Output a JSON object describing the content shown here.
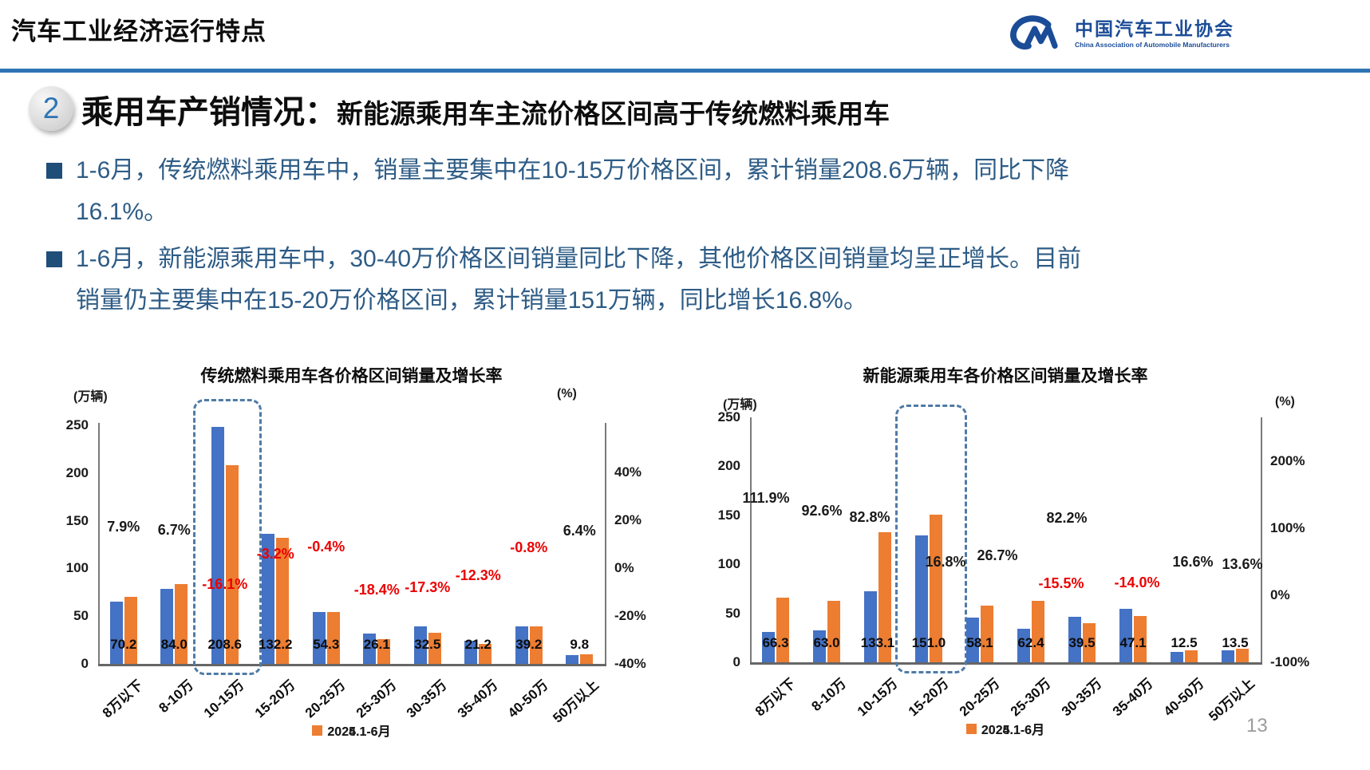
{
  "header": {
    "title": "汽车工业经济运行特点",
    "logo": {
      "name_cn": "中国汽车工业协会",
      "name_en": "China Association of Automobile Manufacturers"
    }
  },
  "section": {
    "number": "2",
    "title": "乘用车产销情况：",
    "subtitle": "新能源乘用车主流价格区间高于传统燃料乘用车"
  },
  "bullets": [
    {
      "line1": "1-6月，传统燃料乘用车中，销量主要集中在10-15万价格区间，累计销量208.6万辆，同比下降",
      "line2": "16.1%。"
    },
    {
      "line1": "1-6月，新能源乘用车中，30-40万价格区间销量同比下降，其他价格区间销量均呈正增长。目前",
      "line2": "销量仍主要集中在15-20万价格区间，累计销量151万辆，同比增长16.8%。"
    }
  ],
  "page_number": "13",
  "colors": {
    "accent_blue": "#2e74b5",
    "text_blue": "#2e5c86",
    "bar_2024": "#4472c4",
    "bar_2025": "#ed7d31",
    "growth_negative": "#eb0000",
    "growth_positive": "#1a1a1a",
    "highlight_dash": "#4f7ba6"
  },
  "chart_data": [
    {
      "type": "bar",
      "title": "传统燃料乘用车各价格区间销量及增长率",
      "left_axis_unit": "(万辆)",
      "right_axis_unit": "(%)",
      "categories": [
        "8万以下",
        "8-10万",
        "10-15万",
        "15-20万",
        "20-25万",
        "25-30万",
        "30-35万",
        "35-40万",
        "40-50万",
        "50万以上"
      ],
      "series": [
        {
          "name": "2024.1-6月",
          "color": "#4472c4",
          "estimated": true,
          "values": [
            65.1,
            78.7,
            248.6,
            136.6,
            54.5,
            32.0,
            39.3,
            24.2,
            39.5,
            9.2
          ]
        },
        {
          "name": "2025.1-6月",
          "color": "#ed7d31",
          "estimated": false,
          "values": [
            70.2,
            84.0,
            208.6,
            132.2,
            54.3,
            26.1,
            32.5,
            21.2,
            39.2,
            9.8
          ]
        }
      ],
      "value_labels": [
        "70.2",
        "84.0",
        "208.6",
        "132.2",
        "54.3",
        "26.1",
        "32.5",
        "21.2",
        "39.2",
        "9.8"
      ],
      "growth_rate_pct": [
        7.9,
        6.7,
        -16.1,
        -3.2,
        -0.4,
        -18.4,
        -17.3,
        -12.3,
        -0.8,
        6.4
      ],
      "growth_labels": [
        "7.9%",
        "6.7%",
        "-16.1%",
        "-3.2%",
        "-0.4%",
        "-18.4%",
        "-17.3%",
        "-12.3%",
        "-0.8%",
        "6.4%"
      ],
      "left_ticks": [
        0,
        50,
        100,
        150,
        200,
        250
      ],
      "left_axis_range": [
        0,
        270
      ],
      "right_ticks_pct": [
        40,
        20,
        0,
        -20,
        -40
      ],
      "right_tick_labels": [
        "40%",
        "20%",
        "0%",
        "-20%",
        "-40%"
      ],
      "right_axis_range_pct": [
        -40,
        40
      ],
      "highlighted_category": "10-15万",
      "legend": [
        "2024.1-6月",
        "2025.1-6月"
      ],
      "legend_position": "bottom",
      "grid": false
    },
    {
      "type": "bar",
      "title": "新能源乘用车各价格区间销量及增长率",
      "left_axis_unit": "(万辆)",
      "right_axis_unit": "(%)",
      "categories": [
        "8万以下",
        "8-10万",
        "10-15万",
        "15-20万",
        "20-25万",
        "25-30万",
        "30-35万",
        "35-40万",
        "40-50万",
        "50万以上"
      ],
      "series": [
        {
          "name": "2024.1-6月",
          "color": "#4472c4",
          "estimated": true,
          "values": [
            31.3,
            32.7,
            72.8,
            129.3,
            45.9,
            34.2,
            46.7,
            54.8,
            10.7,
            11.9
          ]
        },
        {
          "name": "2025.1-6月",
          "color": "#ed7d31",
          "estimated": false,
          "values": [
            66.3,
            63.0,
            133.1,
            151.0,
            58.1,
            62.4,
            39.5,
            47.1,
            12.5,
            13.5
          ]
        }
      ],
      "value_labels": [
        "66.3",
        "63.0",
        "133.1",
        "151.0",
        "58.1",
        "62.4",
        "39.5",
        "47.1",
        "12.5",
        "13.5"
      ],
      "growth_rate_pct": [
        111.9,
        92.6,
        82.8,
        16.8,
        26.7,
        82.2,
        -15.5,
        -14.0,
        16.6,
        13.6
      ],
      "growth_labels": [
        "111.9%",
        "92.6%",
        "82.8%",
        "16.8%",
        "26.7%",
        "82.2%",
        "-15.5%",
        "-14.0%",
        "16.6%",
        "13.6%"
      ],
      "left_ticks": [
        0,
        50,
        100,
        150,
        200,
        250
      ],
      "left_axis_range": [
        0,
        260
      ],
      "right_ticks_pct": [
        200,
        100,
        0,
        -100
      ],
      "right_tick_labels": [
        "200%",
        "100%",
        "0%",
        "-100%"
      ],
      "right_axis_range_pct": [
        -100,
        280
      ],
      "highlighted_category": "15-20万",
      "legend": [
        "2024.1-6月",
        "2025.1-6月"
      ],
      "legend_position": "bottom",
      "grid": false
    }
  ]
}
